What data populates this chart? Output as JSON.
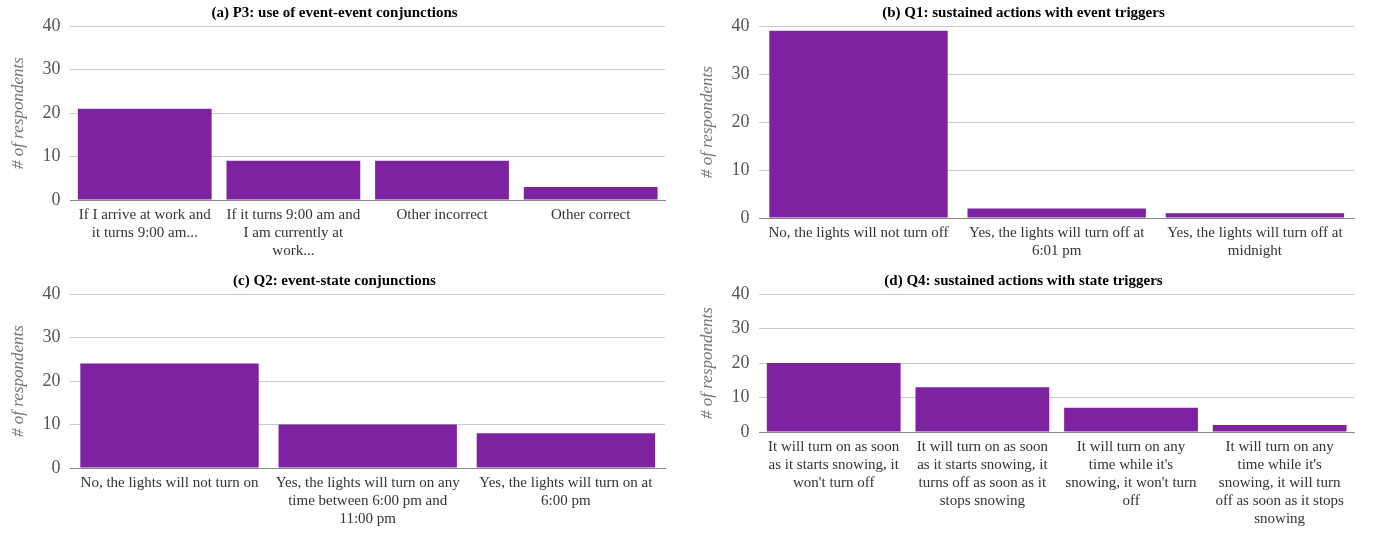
{
  "chart_data": [
    {
      "type": "bar",
      "title": "(a) P3: use of event-event conjunctions",
      "ylabel": "# of respondents",
      "categories": [
        "If I arrive at work and it turns 9:00 am...",
        "If it turns 9:00 am and I am currently at work...",
        "Other incorrect",
        "Other correct"
      ],
      "values": [
        21,
        9,
        9,
        3
      ],
      "color": "#7d22a0",
      "ylim": [
        0,
        40
      ],
      "yticks": [
        0,
        10,
        20,
        30,
        40
      ],
      "grid": "y"
    },
    {
      "type": "bar",
      "title": "(b) Q1: sustained actions with event triggers",
      "ylabel": "# of respondents",
      "categories": [
        "No, the lights will not turn off",
        "Yes, the lights will turn off at 6:01 pm",
        "Yes, the lights will turn off at midnight"
      ],
      "values": [
        39,
        2,
        1
      ],
      "color": "#7d22a0",
      "ylim": [
        0,
        40
      ],
      "yticks": [
        0,
        10,
        20,
        30,
        40
      ],
      "grid": "y"
    },
    {
      "type": "bar",
      "title": "(c) Q2: event-state conjunctions",
      "ylabel": "# of respondents",
      "categories": [
        "No, the lights will not turn on",
        "Yes, the lights will turn on any time between 6:00 pm and 11:00 pm",
        "Yes, the lights will turn on at 6:00 pm"
      ],
      "values": [
        24,
        10,
        8
      ],
      "color": "#7d22a0",
      "ylim": [
        0,
        40
      ],
      "yticks": [
        0,
        10,
        20,
        30,
        40
      ],
      "grid": "y"
    },
    {
      "type": "bar",
      "title": "(d) Q4: sustained actions with state triggers",
      "ylabel": "# of respondents",
      "categories": [
        "It will turn on as soon as it starts snowing, it won't turn off",
        "It will turn on as soon as it starts snowing, it turns off as soon as it stops snowing",
        "It will turn on any time while it's snowing, it won't turn off",
        "It will turn on any time while it's snowing, it will turn off as soon as it stops snowing"
      ],
      "values": [
        20,
        13,
        7,
        2
      ],
      "color": "#7d22a0",
      "ylim": [
        0,
        40
      ],
      "yticks": [
        0,
        10,
        20,
        30,
        40
      ],
      "grid": "y"
    }
  ]
}
